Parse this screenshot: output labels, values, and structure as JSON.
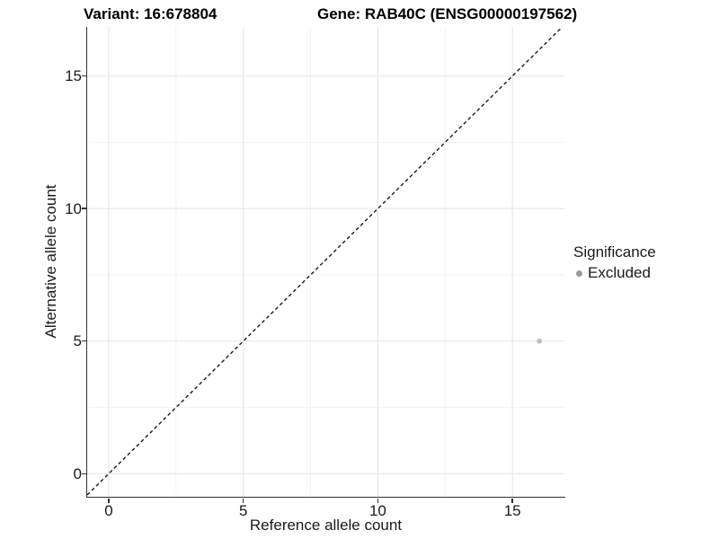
{
  "header": {
    "variant_title": "Variant: 16:678804",
    "gene_title": "Gene: RAB40C (ENSG00000197562)"
  },
  "chart_data": {
    "type": "scatter",
    "title_left": "Variant: 16:678804",
    "title_right": "Gene: RAB40C (ENSG00000197562)",
    "xlabel": "Reference allele count",
    "ylabel": "Alternative allele count",
    "xlim": [
      -0.8,
      16.93
    ],
    "ylim": [
      -0.87,
      16.85
    ],
    "xticks": [
      0,
      5,
      10,
      15
    ],
    "yticks": [
      0,
      5,
      10,
      15
    ],
    "minor_xticks": [
      2.5,
      7.5,
      12.5
    ],
    "minor_yticks": [
      2.5,
      7.5,
      12.5
    ],
    "grid": true,
    "series": [
      {
        "name": "Excluded",
        "points": [
          {
            "x": 16,
            "y": 5
          }
        ],
        "color": "#bababa",
        "point_radius": 2.8
      }
    ],
    "reference_line": {
      "slope": 1,
      "intercept": 0,
      "style": "dashed",
      "color": "#1a1a1a"
    },
    "legend": {
      "title": "Significance",
      "position": "right",
      "items": [
        {
          "label": "Excluded",
          "color": "#9b9b9b"
        }
      ]
    },
    "colors": {
      "grid_major": "#e6e6e6",
      "grid_minor": "#f0f0f0",
      "axis": "#333333",
      "background": "#ffffff"
    }
  }
}
